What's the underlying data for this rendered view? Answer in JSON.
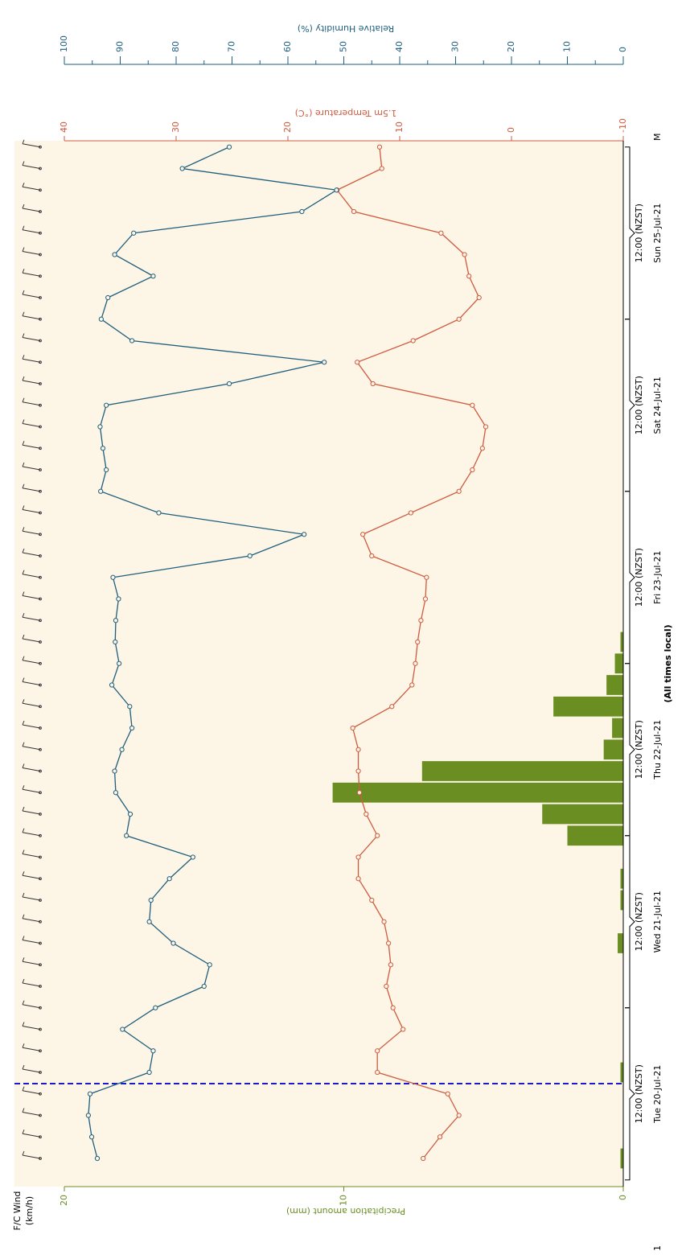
{
  "chart_data": {
    "type": "line",
    "wind_label": [
      "F/C Wind",
      "(km/h)"
    ],
    "xlabel": "(All times local)",
    "edge_labels": [
      "1",
      "M"
    ],
    "categories": [
      null,
      null,
      null,
      "12:00 (NZST)",
      null,
      null,
      null,
      null,
      null,
      null,
      null,
      "12:00 (NZST)",
      null,
      null,
      null,
      null,
      null,
      null,
      null,
      "12:00 (NZST)",
      null,
      null,
      null,
      null,
      null,
      null,
      null,
      "12:00 (NZST)",
      null,
      null,
      null,
      null,
      null,
      null,
      null,
      "12:00 (NZST)",
      null,
      null,
      null,
      null,
      null,
      null,
      null,
      "12:00 (NZST)",
      null,
      null,
      null,
      null
    ],
    "dates": [
      "Tue 20-Jul-21",
      "Wed 21-Jul-21",
      "Thu 22-Jul-21",
      "Fri 23-Jul-21",
      "Sat 24-Jul-21",
      "Sun 25-Jul-21"
    ],
    "ylabel": "Precipitation amount (mm)",
    "ylim": [
      0,
      20
    ],
    "yticks": [
      0,
      10,
      20
    ],
    "y2label": "1.5m Temperature (°C)",
    "y2lim": [
      -10,
      40
    ],
    "y2ticks": [
      -10,
      0,
      10,
      20,
      30,
      40
    ],
    "y3label": "Relative Humidity (%)",
    "y3lim": [
      0,
      100
    ],
    "y3ticks": [
      0,
      10,
      20,
      30,
      40,
      50,
      60,
      70,
      80,
      90,
      100
    ],
    "series": [
      {
        "name": "Precipitation amount (mm)",
        "type": "bar",
        "axis": "y",
        "color": "#6b8e23",
        "values": [
          0.1,
          0,
          0,
          0,
          0.1,
          0,
          0,
          0,
          0,
          0,
          0.2,
          0,
          0.1,
          0.1,
          0,
          2.0,
          2.9,
          10.4,
          7.2,
          0.7,
          0.4,
          2.5,
          0.6,
          0.3,
          0.1,
          0,
          0,
          0,
          0,
          0,
          0,
          0,
          0,
          0,
          0,
          0,
          0,
          0,
          0,
          0,
          0,
          0,
          0,
          0,
          0,
          0,
          0,
          0
        ]
      },
      {
        "name": "1.5m Temperature (°C)",
        "type": "line",
        "axis": "y2",
        "color": "#cf5b3f",
        "values": [
          7.9,
          6.4,
          4.7,
          5.7,
          12.0,
          12.0,
          9.7,
          10.6,
          11.2,
          10.8,
          11.0,
          11.4,
          12.5,
          13.7,
          13.7,
          12.0,
          13.0,
          13.6,
          13.7,
          13.7,
          14.2,
          10.7,
          8.9,
          8.6,
          8.4,
          8.1,
          7.7,
          7.6,
          12.5,
          13.3,
          9.0,
          4.7,
          3.5,
          2.6,
          2.3,
          3.5,
          12.4,
          13.8,
          8.8,
          4.7,
          2.9,
          3.8,
          4.2,
          6.3,
          14.1,
          15.6,
          11.6,
          11.8
        ]
      },
      {
        "name": "Relative Humidity (%)",
        "type": "line",
        "axis": "y3",
        "color": "#1f5f7d",
        "values": [
          94.1,
          95.1,
          95.7,
          95.4,
          84.8,
          84.1,
          89.6,
          83.7,
          75.0,
          74.0,
          80.5,
          84.8,
          84.5,
          81.2,
          77.0,
          88.9,
          88.2,
          90.8,
          91.0,
          89.7,
          87.9,
          88.3,
          91.5,
          90.2,
          90.9,
          90.8,
          90.3,
          91.3,
          66.8,
          57.1,
          83.1,
          93.5,
          92.5,
          93.1,
          93.6,
          92.5,
          70.5,
          53.5,
          87.9,
          93.4,
          92.2,
          84.1,
          91.0,
          87.6,
          57.5,
          51.3,
          78.9,
          70.5
        ]
      }
    ]
  }
}
